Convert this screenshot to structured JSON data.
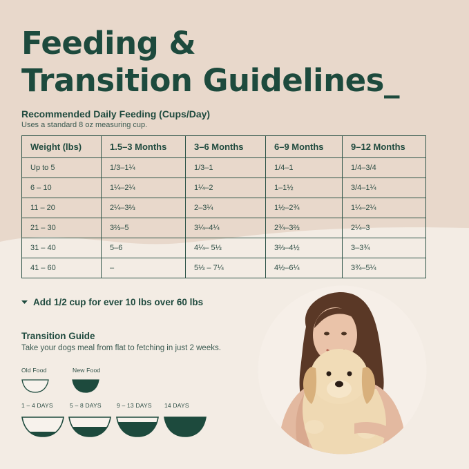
{
  "title_line1": "Feeding &",
  "title_line2": "Transition Guidelines",
  "feeding": {
    "heading": "Recommended Daily Feeding (Cups/Day)",
    "note": "Uses a standard 8 oz measuring cup.",
    "headers": [
      "Weight (lbs)",
      "1.5–3 Months",
      "3–6 Months",
      "6–9 Months",
      "9–12 Months"
    ],
    "rows": [
      [
        "Up to 5",
        "1/3–1¼",
        "1/3–1",
        "1/4–1",
        "1/4–3/4"
      ],
      [
        "6 – 10",
        "1¼–2¼",
        "1¼–2",
        "1–1½",
        "3/4–1¼"
      ],
      [
        "11 – 20",
        "2¼–3⅔",
        "2–3¼",
        "1½–2¾",
        "1¼–2¼"
      ],
      [
        "21 – 30",
        "3⅔–5",
        "3¼–4¼",
        "2¾–3⅔",
        "2¼–3"
      ],
      [
        "31 – 40",
        "5–6",
        "4¼– 5⅓",
        "3⅔–4½",
        "3–3¾"
      ],
      [
        "41 – 60",
        "–",
        "5⅓ – 7¼",
        "4½–6¼",
        "3¾–5¼"
      ]
    ]
  },
  "extra_note": "Add 1/2 cup for ever 10 lbs over 60 lbs",
  "transition": {
    "title": "Transition Guide",
    "subtitle": "Take your dogs meal from flat to fetching in just 2 weeks.",
    "legend_old": "Old Food",
    "legend_new": "New Food",
    "stages": [
      {
        "label": "1 – 4 DAYS",
        "new_fraction": 0.25
      },
      {
        "label": "5 – 8 DAYS",
        "new_fraction": 0.5
      },
      {
        "label": "9 – 13 DAYS",
        "new_fraction": 0.75
      },
      {
        "label": "14 DAYS",
        "new_fraction": 1.0
      }
    ]
  },
  "colors": {
    "dark_green": "#1d4a3d",
    "beige": "#e8d8cb",
    "cream": "#f3ece4"
  },
  "icons": {
    "bullet": "chevron-bullet-icon",
    "photo": "woman-with-puppy-photo"
  }
}
